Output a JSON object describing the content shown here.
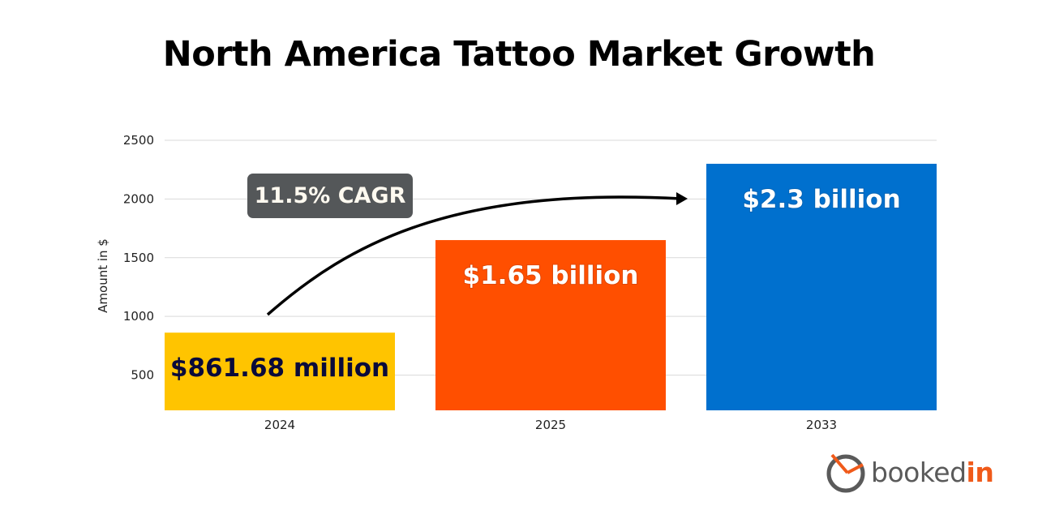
{
  "chart_data": {
    "type": "bar",
    "title": "North America Tattoo Market Growth",
    "ylabel": "Amount in $",
    "xlabel": "",
    "categories": [
      "2024",
      "2025",
      "2033"
    ],
    "values": [
      861.68,
      1650,
      2300
    ],
    "data_labels": [
      "$861.68 million",
      "$1.65 billion",
      "$2.3 billion"
    ],
    "colors": [
      "#FFC400",
      "#FF4F00",
      "#0070CE"
    ],
    "label_colors": [
      "#0a0a3a",
      "#ffffff",
      "#ffffff"
    ],
    "yticks": [
      500,
      1000,
      1500,
      2000,
      2500
    ],
    "ylim": [
      200,
      2500
    ],
    "grid": true,
    "annotation": "11.5% CAGR"
  },
  "brand": {
    "logo_text_a": "booked",
    "logo_text_b": "in",
    "accent": "#F05A1A"
  }
}
